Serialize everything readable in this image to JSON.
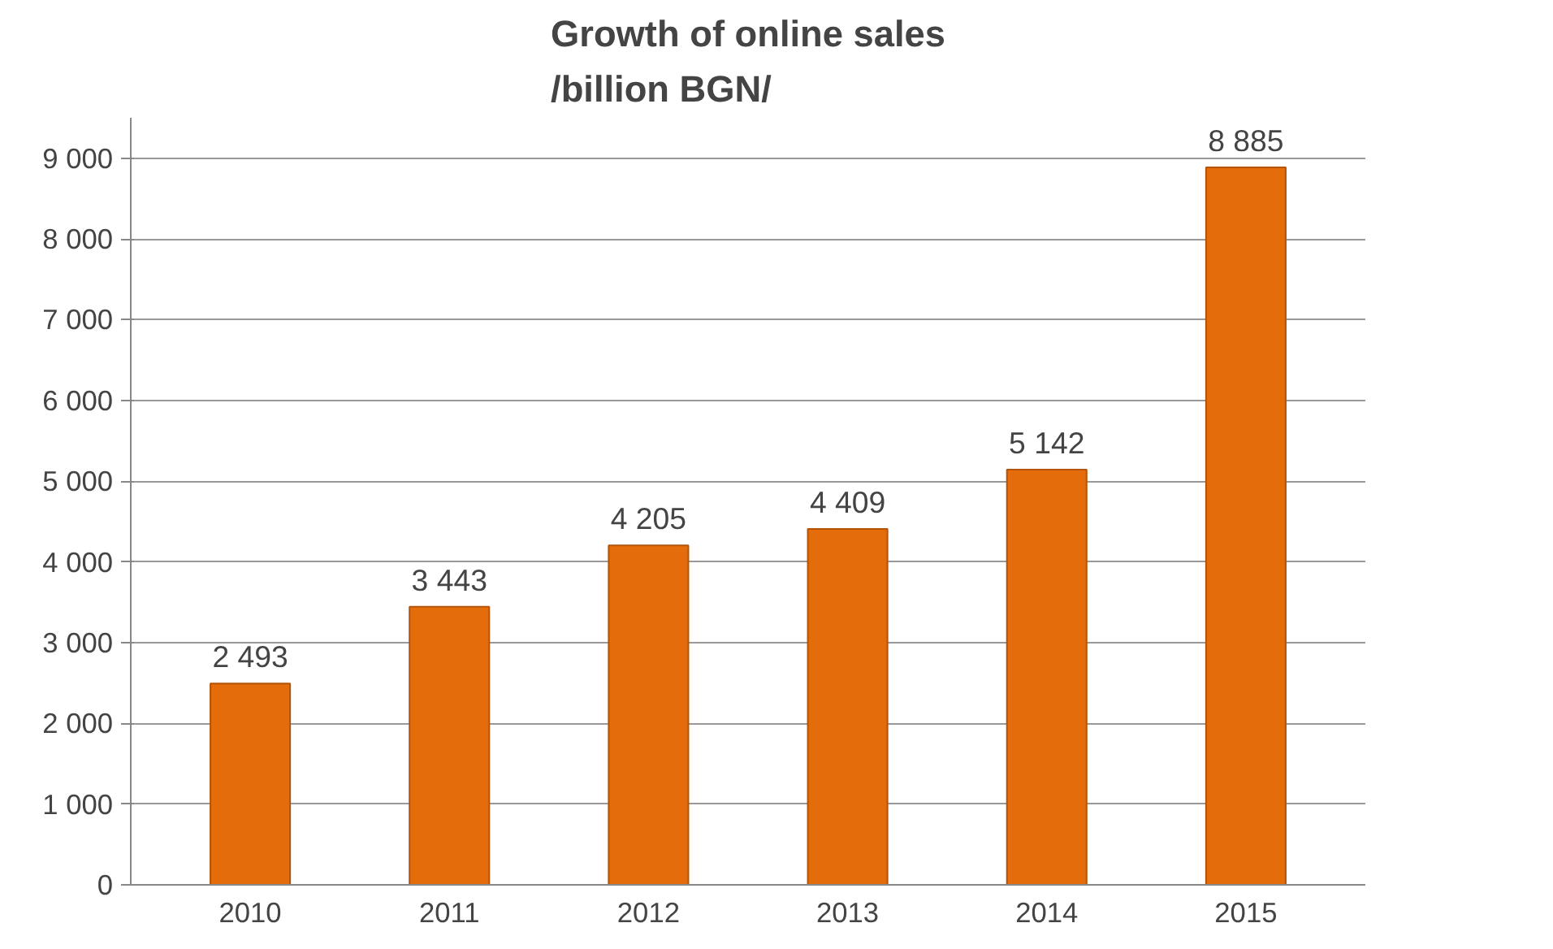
{
  "chart_data": {
    "type": "bar",
    "title": "Growth of online sales\n/billion BGN/",
    "categories": [
      "2010",
      "2011",
      "2012",
      "2013",
      "2014",
      "2015"
    ],
    "values": [
      2493,
      3443,
      4205,
      4409,
      5142,
      8885
    ],
    "value_labels": [
      "2 493",
      "3 443",
      "4 205",
      "4 409",
      "5 142",
      "8 885"
    ],
    "color": "#e46c0a",
    "ylim": [
      0,
      9500
    ],
    "yticks": [
      0,
      {
        "value": 1000,
        "label": "1 000"
      },
      {
        "value": 2000,
        "label": "2 000"
      },
      {
        "value": 3000,
        "label": "3 000"
      },
      {
        "value": 4000,
        "label": "4 000"
      },
      {
        "value": 5000,
        "label": "5 000"
      },
      {
        "value": 6000,
        "label": "6 000"
      },
      {
        "value": 7000,
        "label": "7 000"
      },
      {
        "value": 8000,
        "label": "8 000"
      },
      {
        "value": 9000,
        "label": "9 000"
      }
    ],
    "grid": "y"
  }
}
